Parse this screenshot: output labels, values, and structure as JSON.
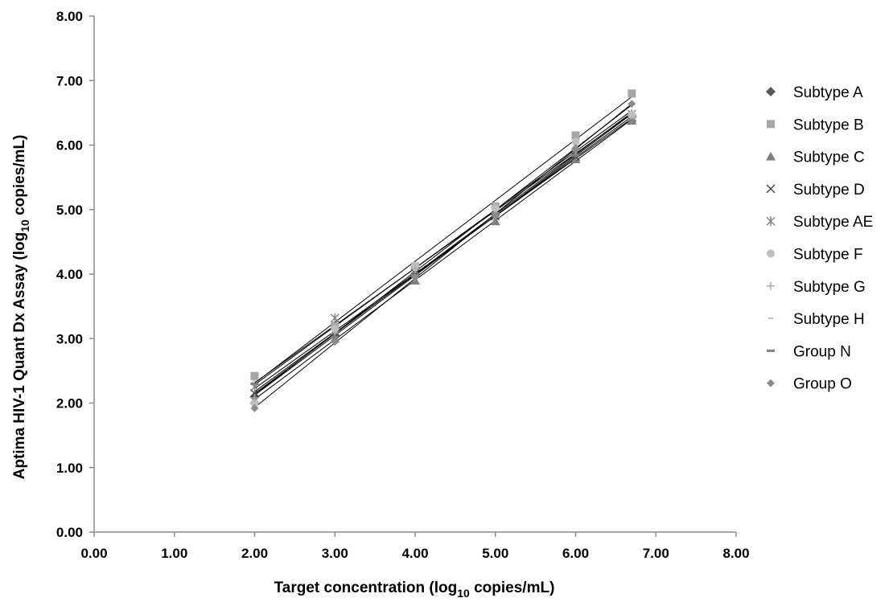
{
  "chart_data": {
    "type": "scatter",
    "title": "",
    "xlabel": {
      "main": "Target concentration (log",
      "sub": "10",
      "tail": " copies/mL)"
    },
    "ylabel": {
      "main": "Aptima HIV-1 Quant Dx Assay (log",
      "sub": "10",
      "tail": " copies/mL)"
    },
    "xlim": [
      0,
      8
    ],
    "ylim": [
      0,
      8
    ],
    "x_ticks": [
      "0.00",
      "1.00",
      "2.00",
      "3.00",
      "4.00",
      "5.00",
      "6.00",
      "7.00",
      "8.00"
    ],
    "y_ticks": [
      "0.00",
      "1.00",
      "2.00",
      "3.00",
      "4.00",
      "5.00",
      "6.00",
      "7.00",
      "8.00"
    ],
    "grid": false,
    "trendlines": true,
    "legend_position": "right",
    "x": [
      2.0,
      3.0,
      4.0,
      5.0,
      6.0,
      6.7
    ],
    "series": [
      {
        "name": "Subtype A",
        "marker": "diamond",
        "color": "#595959",
        "values": [
          2.1,
          3.05,
          4.0,
          4.92,
          5.85,
          6.45
        ]
      },
      {
        "name": "Subtype B",
        "marker": "square",
        "color": "#a6a6a6",
        "values": [
          2.42,
          3.2,
          4.12,
          5.05,
          6.15,
          6.8
        ]
      },
      {
        "name": "Subtype C",
        "marker": "triangle",
        "color": "#7f7f7f",
        "values": [
          2.05,
          3.0,
          3.9,
          4.82,
          5.78,
          6.38
        ]
      },
      {
        "name": "Subtype D",
        "marker": "x",
        "color": "#404040",
        "values": [
          2.15,
          3.1,
          4.02,
          4.9,
          5.82,
          6.42
        ]
      },
      {
        "name": "Subtype AE",
        "marker": "star",
        "color": "#808080",
        "values": [
          2.25,
          3.32,
          4.05,
          4.97,
          5.88,
          6.48
        ]
      },
      {
        "name": "Subtype F",
        "marker": "circle",
        "color": "#bfbfbf",
        "values": [
          2.0,
          3.15,
          4.13,
          5.02,
          6.05,
          6.47
        ]
      },
      {
        "name": "Subtype G",
        "marker": "plus",
        "color": "#a6a6a6",
        "values": [
          2.08,
          3.08,
          4.08,
          4.95,
          5.92,
          6.4
        ]
      },
      {
        "name": "Subtype H",
        "marker": "short-dash",
        "color": "#bfbfbf",
        "values": [
          2.35,
          3.12,
          4.06,
          4.99,
          5.98,
          6.5
        ]
      },
      {
        "name": "Group N",
        "marker": "long-dash",
        "color": "#7f7f7f",
        "values": [
          2.3,
          3.02,
          3.98,
          4.93,
          5.84,
          6.38
        ]
      },
      {
        "name": "Group O",
        "marker": "small-diamond",
        "color": "#8c8c8c",
        "values": [
          1.92,
          2.95,
          3.95,
          4.9,
          5.95,
          6.64
        ]
      }
    ]
  }
}
